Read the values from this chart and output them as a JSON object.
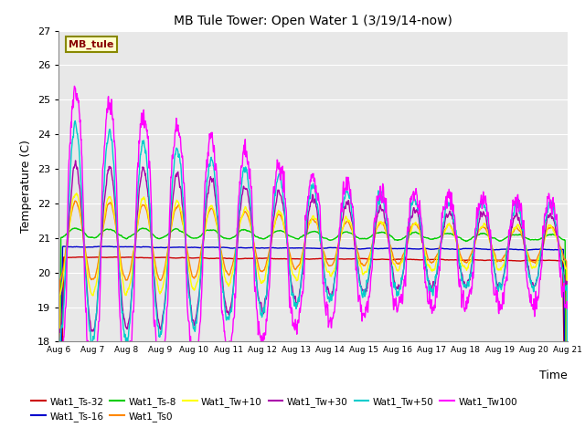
{
  "title": "MB Tule Tower: Open Water 1 (3/19/14-now)",
  "xlabel": "Time",
  "ylabel": "Temperature (C)",
  "ylim": [
    18.0,
    27.0
  ],
  "yticks": [
    18.0,
    19.0,
    20.0,
    21.0,
    22.0,
    23.0,
    24.0,
    25.0,
    26.0,
    27.0
  ],
  "xtick_labels": [
    "Aug 6",
    "Aug 7",
    "Aug 8",
    "Aug 9",
    "Aug 10",
    "Aug 11",
    "Aug 12",
    "Aug 13",
    "Aug 14",
    "Aug 15",
    "Aug 16",
    "Aug 17",
    "Aug 18",
    "Aug 19",
    "Aug 20",
    "Aug 21"
  ],
  "series_colors": {
    "Wat1_Ts-32": "#cc0000",
    "Wat1_Ts-16": "#0000cc",
    "Wat1_Ts-8": "#00cc00",
    "Wat1_Ts0": "#ff8800",
    "Wat1_Tw+10": "#ffff00",
    "Wat1_Tw+30": "#aa00aa",
    "Wat1_Tw+50": "#00cccc",
    "Wat1_Tw100": "#ff00ff"
  },
  "label_box_text": "MB_tule",
  "label_box_facecolor": "#ffffcc",
  "label_box_edgecolor": "#888800",
  "label_box_textcolor": "#880000",
  "background_plot": "#e8e8e8",
  "background_fig": "#ffffff"
}
